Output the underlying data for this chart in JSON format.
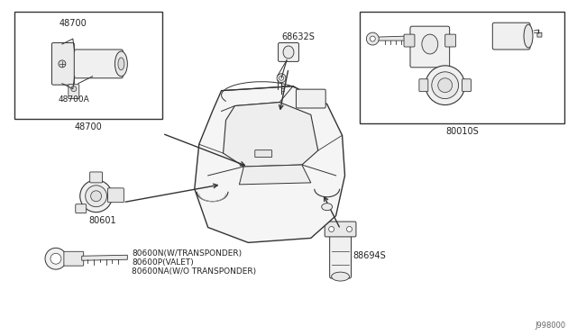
{
  "bg_color": "#ffffff",
  "line_color": "#333333",
  "text_color": "#222222",
  "diagram_id": "J998000",
  "labels": {
    "48700_top": "48700",
    "48700A": "48700A",
    "48700_bottom": "48700",
    "68632S": "68632S",
    "80010S": "80010S",
    "80601": "80601",
    "80600N": "80600N(W/TRANSPONDER)",
    "80600P": "80600P(VALET)",
    "80600NA": "80600NA(W/O TRANSPONDER)",
    "88694S": "88694S"
  },
  "fig_width": 6.4,
  "fig_height": 3.72,
  "dpi": 100
}
